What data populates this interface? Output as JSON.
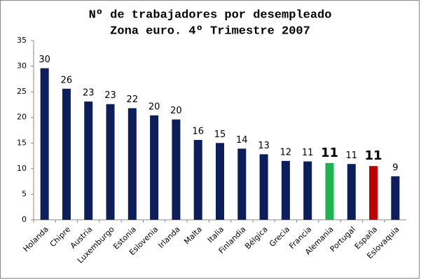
{
  "chart_data": {
    "type": "bar",
    "title": "Nº de trabajadores por desempleado",
    "subtitle": "Zona euro. 4º Trimestre 2007",
    "categories": [
      "Holanda",
      "Chipre",
      "Austria",
      "Luxemburgo",
      "Estonia",
      "Eslovenia",
      "Irlanda",
      "Malta",
      "Italia",
      "Finlandia",
      "Bélgica",
      "Grecia",
      "Francia",
      "Alemania",
      "Portugal",
      "España",
      "Eslovaquia"
    ],
    "values": [
      29.6,
      25.6,
      23.1,
      22.6,
      21.8,
      20.4,
      19.6,
      15.6,
      15.0,
      13.9,
      12.8,
      11.5,
      11.4,
      11.1,
      10.9,
      10.5,
      8.5
    ],
    "value_labels": [
      "30",
      "26",
      "23",
      "23",
      "22",
      "20",
      "20",
      "16",
      "15",
      "14",
      "13",
      "12",
      "11",
      "11",
      "11",
      "11",
      "9"
    ],
    "color": "#0c1f5c",
    "colors": [
      "#0c1f5c",
      "#0c1f5c",
      "#0c1f5c",
      "#0c1f5c",
      "#0c1f5c",
      "#0c1f5c",
      "#0c1f5c",
      "#0c1f5c",
      "#0c1f5c",
      "#0c1f5c",
      "#0c1f5c",
      "#0c1f5c",
      "#0c1f5c",
      "#1db34f",
      "#0c1f5c",
      "#c00000",
      "#0c1f5c"
    ],
    "ylim": [
      0,
      35
    ],
    "yticks": [
      0,
      5,
      10,
      15,
      20,
      25,
      30,
      35
    ],
    "grid": false
  }
}
